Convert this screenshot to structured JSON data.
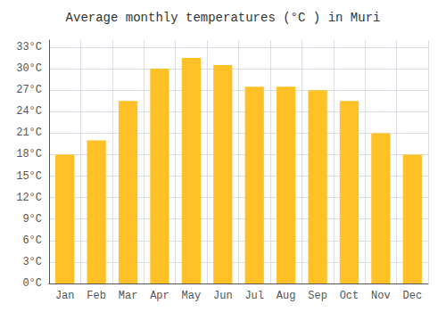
{
  "chart_data": {
    "type": "bar",
    "title": "Average monthly temperatures (°C ) in Muri",
    "categories": [
      "Jan",
      "Feb",
      "Mar",
      "Apr",
      "May",
      "Jun",
      "Jul",
      "Aug",
      "Sep",
      "Oct",
      "Nov",
      "Dec"
    ],
    "values": [
      18,
      20,
      25.5,
      30,
      31.5,
      30.5,
      27.5,
      27.5,
      27,
      25.5,
      21,
      18
    ],
    "color": "#FFC125",
    "ylim": [
      0,
      34
    ],
    "yticks": [
      {
        "value": 0,
        "label": "0°C"
      },
      {
        "value": 3,
        "label": "3°C"
      },
      {
        "value": 6,
        "label": "6°C"
      },
      {
        "value": 9,
        "label": "9°C"
      },
      {
        "value": 12,
        "label": "12°C"
      },
      {
        "value": 15,
        "label": "15°C"
      },
      {
        "value": 18,
        "label": "18°C"
      },
      {
        "value": 21,
        "label": "21°C"
      },
      {
        "value": 24,
        "label": "24°C"
      },
      {
        "value": 27,
        "label": "27°C"
      },
      {
        "value": 30,
        "label": "30°C"
      },
      {
        "value": 33,
        "label": "33°C"
      }
    ],
    "grid": true
  }
}
